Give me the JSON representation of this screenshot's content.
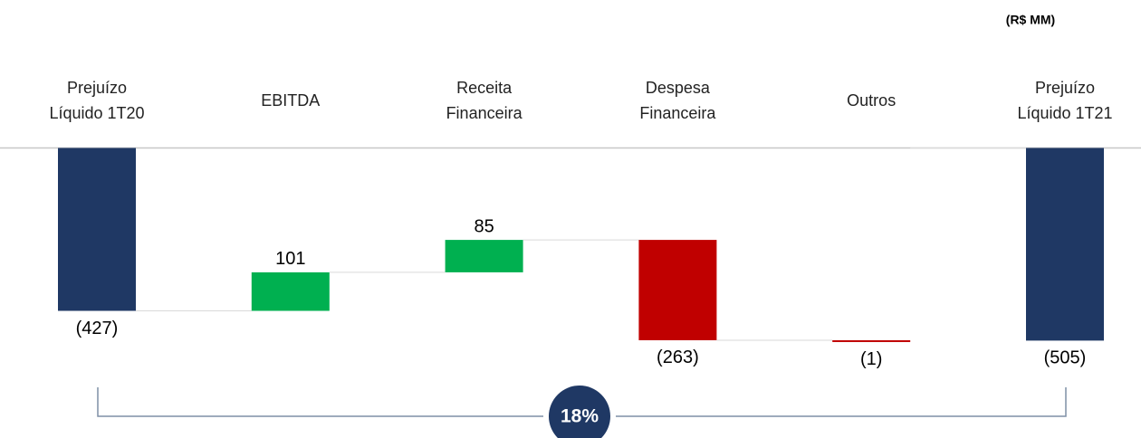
{
  "chart_data": {
    "type": "waterfall",
    "unit_label": "(R$ MM)",
    "categories": [
      "Prejuízo Líquido 1T20",
      "EBITDA",
      "Receita Financeira",
      "Despesa Financeira",
      "Outros",
      "Prejuízo Líquido 1T21"
    ],
    "measure": [
      "absolute",
      "relative",
      "relative",
      "relative",
      "relative",
      "total"
    ],
    "values": [
      -427,
      101,
      85,
      -263,
      -1,
      -505
    ],
    "value_labels": [
      "(427)",
      "101",
      "85",
      "(263)",
      "(1)",
      "(505)"
    ],
    "colors": {
      "total": "#1f3864",
      "increase": "#00b050",
      "decrease": "#c00000"
    },
    "annotation": "18%"
  }
}
